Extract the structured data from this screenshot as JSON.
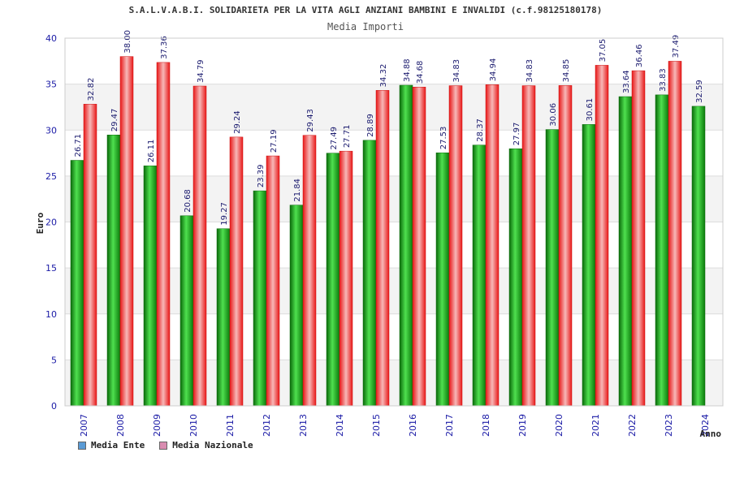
{
  "chart_data": {
    "type": "bar",
    "title": "S.A.L.V.A.B.I. SOLIDARIETA PER LA VITA AGLI ANZIANI BAMBINI E INVALIDI (c.f.98125180178)",
    "subtitle": "Media Importi",
    "xlabel": "Anno",
    "ylabel": "Euro",
    "ylim": [
      0,
      40
    ],
    "yticks": [
      0,
      5,
      10,
      15,
      20,
      25,
      30,
      35,
      40
    ],
    "grid": true,
    "legend_position": "bottom-left",
    "categories": [
      "2007",
      "2008",
      "2009",
      "2010",
      "2011",
      "2012",
      "2013",
      "2014",
      "2015",
      "2016",
      "2017",
      "2018",
      "2019",
      "2020",
      "2021",
      "2022",
      "2023",
      "2024"
    ],
    "series": [
      {
        "name": "Media Ente",
        "color": "#22aa22",
        "legend_color": "#5b9bd5",
        "values": [
          26.71,
          29.47,
          26.11,
          20.68,
          19.27,
          23.39,
          21.84,
          27.49,
          28.89,
          34.88,
          27.53,
          28.37,
          27.97,
          30.06,
          30.61,
          33.64,
          33.83,
          32.59
        ],
        "labels": [
          "26.71",
          "29.47",
          "26.11",
          "20.68",
          "19.27",
          "23.39",
          "21.84",
          "27.49",
          "28.89",
          "34.88",
          "27.53",
          "28.37",
          "27.97",
          "30.06",
          "30.61",
          "33.64",
          "33.83",
          "32.59"
        ]
      },
      {
        "name": "Media Nazionale",
        "color": "#e82020",
        "legend_color": "#d98cb0",
        "values": [
          32.82,
          38.0,
          37.36,
          34.79,
          29.24,
          27.19,
          29.43,
          27.71,
          34.32,
          34.68,
          34.83,
          34.94,
          34.83,
          34.85,
          37.05,
          36.46,
          37.49,
          null
        ],
        "labels": [
          "32.82",
          "38.00",
          "37.36",
          "34.79",
          "29.24",
          "27.19",
          "29.43",
          "27.71",
          "34.32",
          "34.68",
          "34.83",
          "34.94",
          "34.83",
          "34.85",
          "37.05",
          "36.46",
          "37.49",
          ""
        ]
      }
    ]
  }
}
